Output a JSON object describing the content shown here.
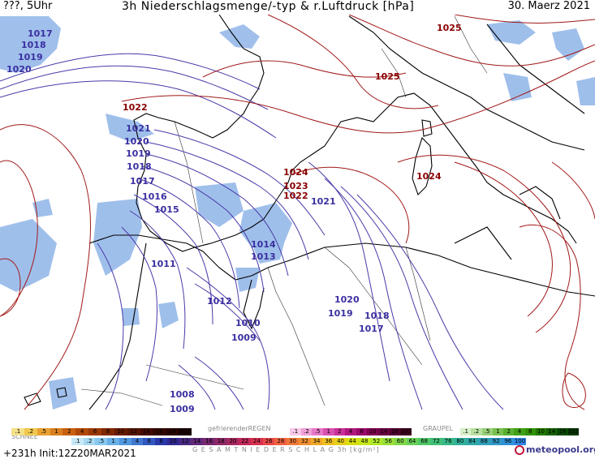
{
  "header": {
    "left": "???, 5Uhr",
    "title": "3h Niederschlagsmenge/-typ & r.Luftdruck [hPa]",
    "date": "30. Maerz 2021"
  },
  "isobars": {
    "labels": [
      {
        "text": "1017",
        "color": "blue"
      },
      {
        "text": "1018",
        "color": "blue"
      },
      {
        "text": "1019",
        "color": "blue"
      },
      {
        "text": "1020",
        "color": "blue"
      },
      {
        "text": "1025",
        "color": "red"
      },
      {
        "text": "1025",
        "color": "red"
      },
      {
        "text": "1022",
        "color": "red"
      },
      {
        "text": "1021",
        "color": "blue"
      },
      {
        "text": "1020",
        "color": "blue"
      },
      {
        "text": "1019",
        "color": "blue"
      },
      {
        "text": "1018",
        "color": "blue"
      },
      {
        "text": "1017",
        "color": "blue"
      },
      {
        "text": "1016",
        "color": "blue"
      },
      {
        "text": "1015",
        "color": "blue"
      },
      {
        "text": "1024",
        "color": "red"
      },
      {
        "text": "1023",
        "color": "red"
      },
      {
        "text": "1022",
        "color": "red"
      },
      {
        "text": "1021",
        "color": "blue"
      },
      {
        "text": "1024",
        "color": "red"
      },
      {
        "text": "1014",
        "color": "blue"
      },
      {
        "text": "1013",
        "color": "blue"
      },
      {
        "text": "1011",
        "color": "blue"
      },
      {
        "text": "1012",
        "color": "blue"
      },
      {
        "text": "1010",
        "color": "blue"
      },
      {
        "text": "1009",
        "color": "blue"
      },
      {
        "text": "1020",
        "color": "blue"
      },
      {
        "text": "1019",
        "color": "blue"
      },
      {
        "text": "1018",
        "color": "blue"
      },
      {
        "text": "1017",
        "color": "blue"
      },
      {
        "text": "1008",
        "color": "blue"
      },
      {
        "text": "1009",
        "color": "blue"
      }
    ]
  },
  "legend": {
    "schnee_label": "SCHNEE",
    "regen_label": "gefrierenderREGEN",
    "graupel_label": "GRAUPEL",
    "gesamt_label": "G E S A M T N I E D E R S C H L A G   3h  [kg/m²]",
    "scale_a": [
      ".1",
      ".2",
      ".5",
      "1",
      "2",
      "4",
      "6",
      "8",
      "10",
      "12",
      "14",
      "16",
      "18",
      "2025+"
    ],
    "scale_b": [
      ".1",
      ".2",
      ".5",
      "1",
      "2",
      "4",
      "8",
      "10",
      "14",
      "16",
      "2025+"
    ],
    "scale_c": [
      ".1",
      ".2",
      ".5",
      "1",
      "2",
      "4",
      "8",
      "10",
      "14",
      "16",
      "2025+"
    ],
    "scale_total": [
      ".1",
      ".2",
      ".5",
      "1",
      "2",
      "4",
      "6",
      "8",
      "10",
      "12",
      "14",
      "16",
      "18",
      "20",
      "22",
      "24",
      "26",
      "28",
      "30",
      "32",
      "34",
      "36",
      "40",
      "44",
      "48",
      "52",
      "56",
      "60",
      "64",
      "68",
      "72",
      "76",
      "80",
      "84",
      "88",
      "92",
      "96",
      "100"
    ]
  },
  "colors": {
    "snow_bar": [
      "#f5e08a",
      "#f0c850",
      "#e8a030",
      "#d88020",
      "#c86010",
      "#b04808",
      "#9a3804",
      "#802800",
      "#661c00",
      "#541400",
      "#420c00",
      "#340800",
      "#280400",
      "#1a0000"
    ],
    "rain_bar": [
      "#f8c8e8",
      "#f0a0d8",
      "#e878c8",
      "#d850b0",
      "#c83098",
      "#b01880",
      "#980868",
      "#800050",
      "#680040",
      "#500030",
      "#400020"
    ],
    "graupel_bar": [
      "#d8f0c8",
      "#b8e0a0",
      "#98d078",
      "#78c050",
      "#58b030",
      "#40a018",
      "#309008",
      "#207800",
      "#146000",
      "#0a4800",
      "#063800"
    ],
    "total_bar": [
      "#c8e8f8",
      "#a8d8f0",
      "#88c8f0",
      "#68b0e8",
      "#5098e0",
      "#4078d0",
      "#3058c0",
      "#2838a8",
      "#302890",
      "#482880",
      "#602878",
      "#782870",
      "#902868",
      "#a82860",
      "#c02858",
      "#d83050",
      "#e84848",
      "#f06040",
      "#f07838",
      "#f09030",
      "#f0a828",
      "#f0c020",
      "#e8d018",
      "#d8e010",
      "#c8e818",
      "#b0e828",
      "#98e038",
      "#80d848",
      "#68d058",
      "#50c868",
      "#40c078",
      "#38b888",
      "#30b098",
      "#30a8a8",
      "#30a0b8",
      "#3098c8",
      "#3090d8",
      "#3088e8"
    ],
    "isobar_blue": "#4a3aa8",
    "isobar_red": "#a01818",
    "precip": "#8fb4e8"
  },
  "run_info": "+231h Init:12Z20MAR2021",
  "logo": "meteopool.org"
}
